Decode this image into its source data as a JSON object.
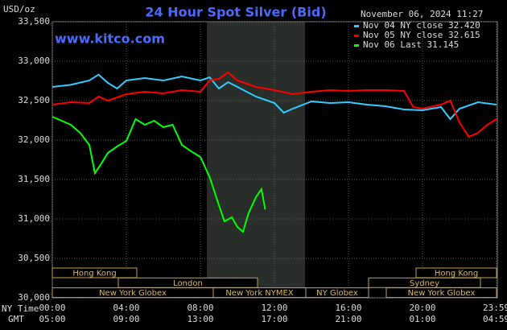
{
  "chart_data": {
    "type": "line",
    "title": "24 Hour Spot Silver (Bid)",
    "timestamp": "November 06, 2024 11:27",
    "site": "www.kitco.com",
    "y_unit": "USD/oz",
    "x_row_labels": [
      "NY Time",
      "GMT"
    ],
    "ylim": [
      30.0,
      33.5
    ],
    "yticks": [
      {
        "value": 30.0,
        "label": "30,000"
      },
      {
        "value": 30.5,
        "label": "30,500"
      },
      {
        "value": 31.0,
        "label": "31,000"
      },
      {
        "value": 31.5,
        "label": "31,500"
      },
      {
        "value": 32.0,
        "label": "32,000"
      },
      {
        "value": 32.5,
        "label": "32,500"
      },
      {
        "value": 33.0,
        "label": "33,000"
      },
      {
        "value": 33.5,
        "label": "33,500"
      }
    ],
    "xlim": [
      0,
      24
    ],
    "xticks": [
      {
        "value": 0,
        "label": "00:00"
      },
      {
        "value": 4,
        "label": "04:00"
      },
      {
        "value": 8,
        "label": "08:00"
      },
      {
        "value": 12,
        "label": "12:00"
      },
      {
        "value": 16,
        "label": "16:00"
      },
      {
        "value": 20,
        "label": "20:00"
      },
      {
        "value": 23.983,
        "label": "23:59"
      }
    ],
    "gmt_tick_labels": [
      "05:00",
      "09:00",
      "13:00",
      "17:00",
      "21:00",
      "01:00",
      "04:59"
    ],
    "grid": true,
    "sessions": [
      "Hong Kong",
      "Hong Kong",
      "London",
      "Sydney",
      "New York Globex",
      "New York NYMEX",
      "NY Globex",
      "New York Globex"
    ],
    "series": [
      {
        "name": "Nov 04 NY close 32.420",
        "color": "#33ccff",
        "x": [
          0,
          1,
          2,
          2.5,
          3,
          3.5,
          4,
          5,
          6,
          7,
          8,
          8.5,
          9,
          9.5,
          10,
          11,
          12,
          12.5,
          13,
          14,
          15,
          16,
          17,
          18,
          19,
          20,
          21,
          21.5,
          22,
          23,
          24
        ],
        "values": [
          32.673,
          32.7,
          32.755,
          32.83,
          32.724,
          32.653,
          32.755,
          32.786,
          32.755,
          32.806,
          32.755,
          32.796,
          32.653,
          32.735,
          32.673,
          32.551,
          32.469,
          32.347,
          32.398,
          32.49,
          32.469,
          32.48,
          32.449,
          32.429,
          32.388,
          32.378,
          32.418,
          32.265,
          32.398,
          32.48,
          32.449
        ]
      },
      {
        "name": "Nov 05 NY close 32.615",
        "color": "#ff0000",
        "x": [
          0,
          1,
          2,
          2.5,
          3,
          4,
          5,
          6,
          7,
          8,
          8.5,
          9,
          9.5,
          10,
          11,
          12,
          13,
          14,
          15,
          16,
          17,
          18,
          19,
          19.5,
          20,
          21,
          21.5,
          22,
          22.5,
          23,
          23.5,
          24
        ],
        "values": [
          32.449,
          32.48,
          32.469,
          32.551,
          32.5,
          32.582,
          32.612,
          32.592,
          32.633,
          32.612,
          32.755,
          32.776,
          32.857,
          32.755,
          32.673,
          32.633,
          32.582,
          32.612,
          32.633,
          32.622,
          32.633,
          32.633,
          32.622,
          32.418,
          32.398,
          32.449,
          32.5,
          32.224,
          32.041,
          32.092,
          32.194,
          32.265
        ]
      },
      {
        "name": "Nov 06 Last 31.145",
        "color": "#00ff00",
        "x": [
          0,
          0.5,
          1,
          1.5,
          2,
          2.3,
          2.6,
          3,
          3.5,
          4,
          4.5,
          5,
          5.5,
          6,
          6.5,
          7,
          7.5,
          8,
          8.5,
          9,
          9.3,
          9.7,
          10,
          10.3,
          10.6,
          11,
          11.3,
          11.5
        ],
        "values": [
          32.296,
          32.245,
          32.194,
          32.092,
          31.939,
          31.582,
          31.684,
          31.837,
          31.918,
          31.99,
          32.265,
          32.194,
          32.245,
          32.163,
          32.194,
          31.939,
          31.857,
          31.786,
          31.531,
          31.173,
          30.969,
          31.02,
          30.898,
          30.837,
          31.071,
          31.276,
          31.378,
          31.12
        ]
      }
    ]
  }
}
